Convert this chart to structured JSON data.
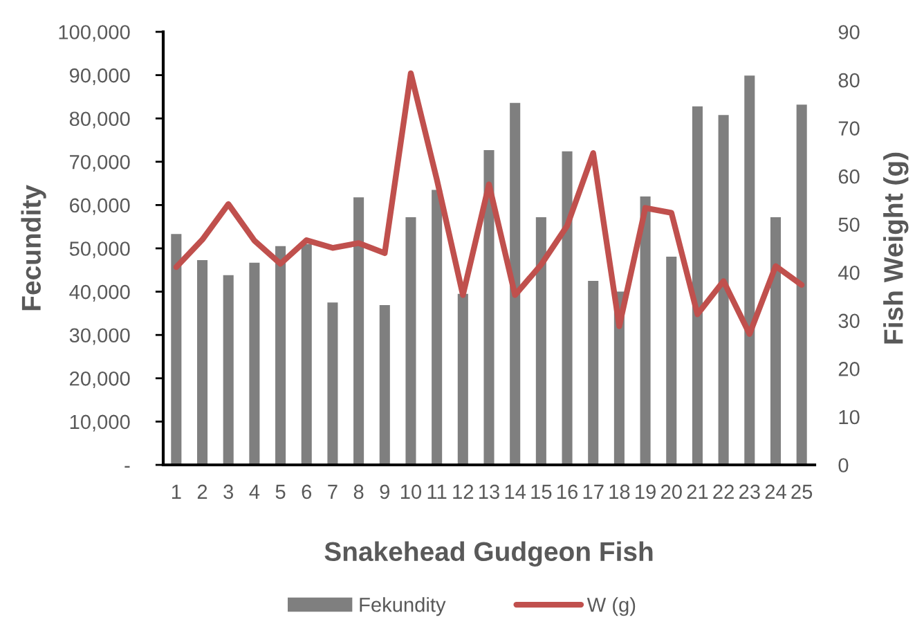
{
  "chart_data": {
    "type": "bar",
    "categories": [
      "1",
      "2",
      "3",
      "4",
      "5",
      "6",
      "7",
      "8",
      "9",
      "10",
      "11",
      "12",
      "13",
      "14",
      "15",
      "16",
      "17",
      "18",
      "19",
      "20",
      "21",
      "22",
      "23",
      "24",
      "25"
    ],
    "series": [
      {
        "name": "Fekundity",
        "color": "#7f7f7f",
        "values": [
          53300,
          47300,
          43800,
          46700,
          50500,
          51000,
          37500,
          61800,
          36900,
          57200,
          63500,
          39500,
          72700,
          83600,
          57200,
          72400,
          42500,
          40000,
          62000,
          48100,
          82800,
          80800,
          89900,
          57200,
          83200
        ]
      },
      {
        "name": "W (g)",
        "type": "line",
        "axis": "y2",
        "color": "#c0504d",
        "values": [
          41.1,
          46.8,
          54.2,
          46.6,
          41.8,
          46.7,
          45.1,
          46.1,
          44.0,
          81.4,
          59.3,
          35.3,
          58.3,
          35.3,
          41.6,
          49.7,
          64.8,
          28.8,
          53.4,
          52.4,
          31.3,
          38.2,
          27.2,
          41.3,
          37.4
        ]
      }
    ],
    "xlabel": "Snakehead Gudgeon Fish",
    "ylabel": "Fecundity",
    "y2label": "Fish Weight (g)",
    "ylim": [
      0,
      100000
    ],
    "yticks": [
      {
        "value": 0,
        "label": "-"
      },
      {
        "value": 10000,
        "label": "10,000"
      },
      {
        "value": 20000,
        "label": "20,000"
      },
      {
        "value": 30000,
        "label": "30,000"
      },
      {
        "value": 40000,
        "label": "40,000"
      },
      {
        "value": 50000,
        "label": "50,000"
      },
      {
        "value": 60000,
        "label": "60,000"
      },
      {
        "value": 70000,
        "label": "70,000"
      },
      {
        "value": 80000,
        "label": "80,000"
      },
      {
        "value": 90000,
        "label": "90,000"
      },
      {
        "value": 100000,
        "label": "100,000"
      }
    ],
    "y2lim": [
      0,
      90
    ],
    "y2ticks": [
      0,
      10,
      20,
      30,
      40,
      50,
      60,
      70,
      80,
      90
    ],
    "grid": false,
    "legend": "bottom",
    "marker": "none",
    "line_style": "solid"
  }
}
